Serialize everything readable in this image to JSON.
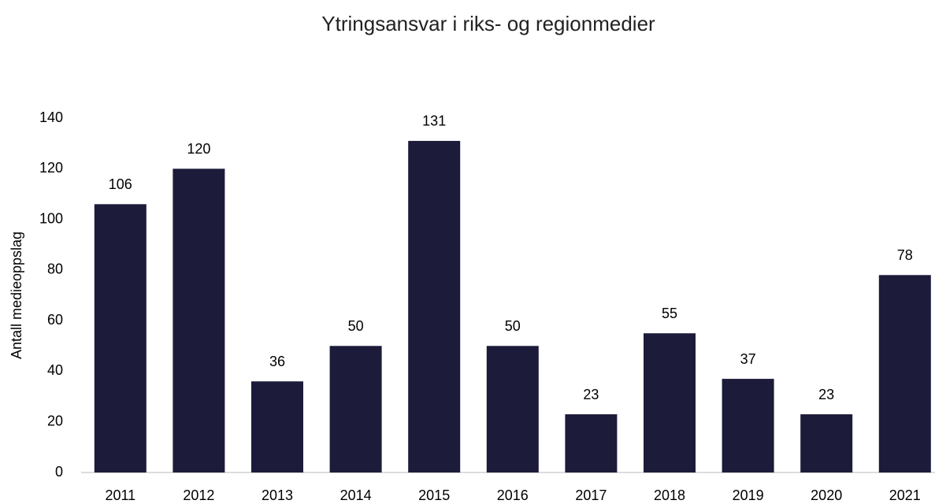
{
  "chart_data": {
    "type": "bar",
    "title": "Ytringsansvar i riks- og regionmedier",
    "y_label": "Antall medieoppslag",
    "categories": [
      "2011",
      "2012",
      "2013",
      "2014",
      "2015",
      "2016",
      "2017",
      "2018",
      "2019",
      "2020",
      "2021"
    ],
    "values": [
      106,
      120,
      36,
      50,
      131,
      50,
      23,
      55,
      37,
      23,
      78
    ],
    "color": "#1c1b3a",
    "ylim": [
      0,
      140
    ],
    "yticks": [
      0,
      20,
      40,
      60,
      80,
      100,
      120,
      140
    ],
    "grid": false
  }
}
